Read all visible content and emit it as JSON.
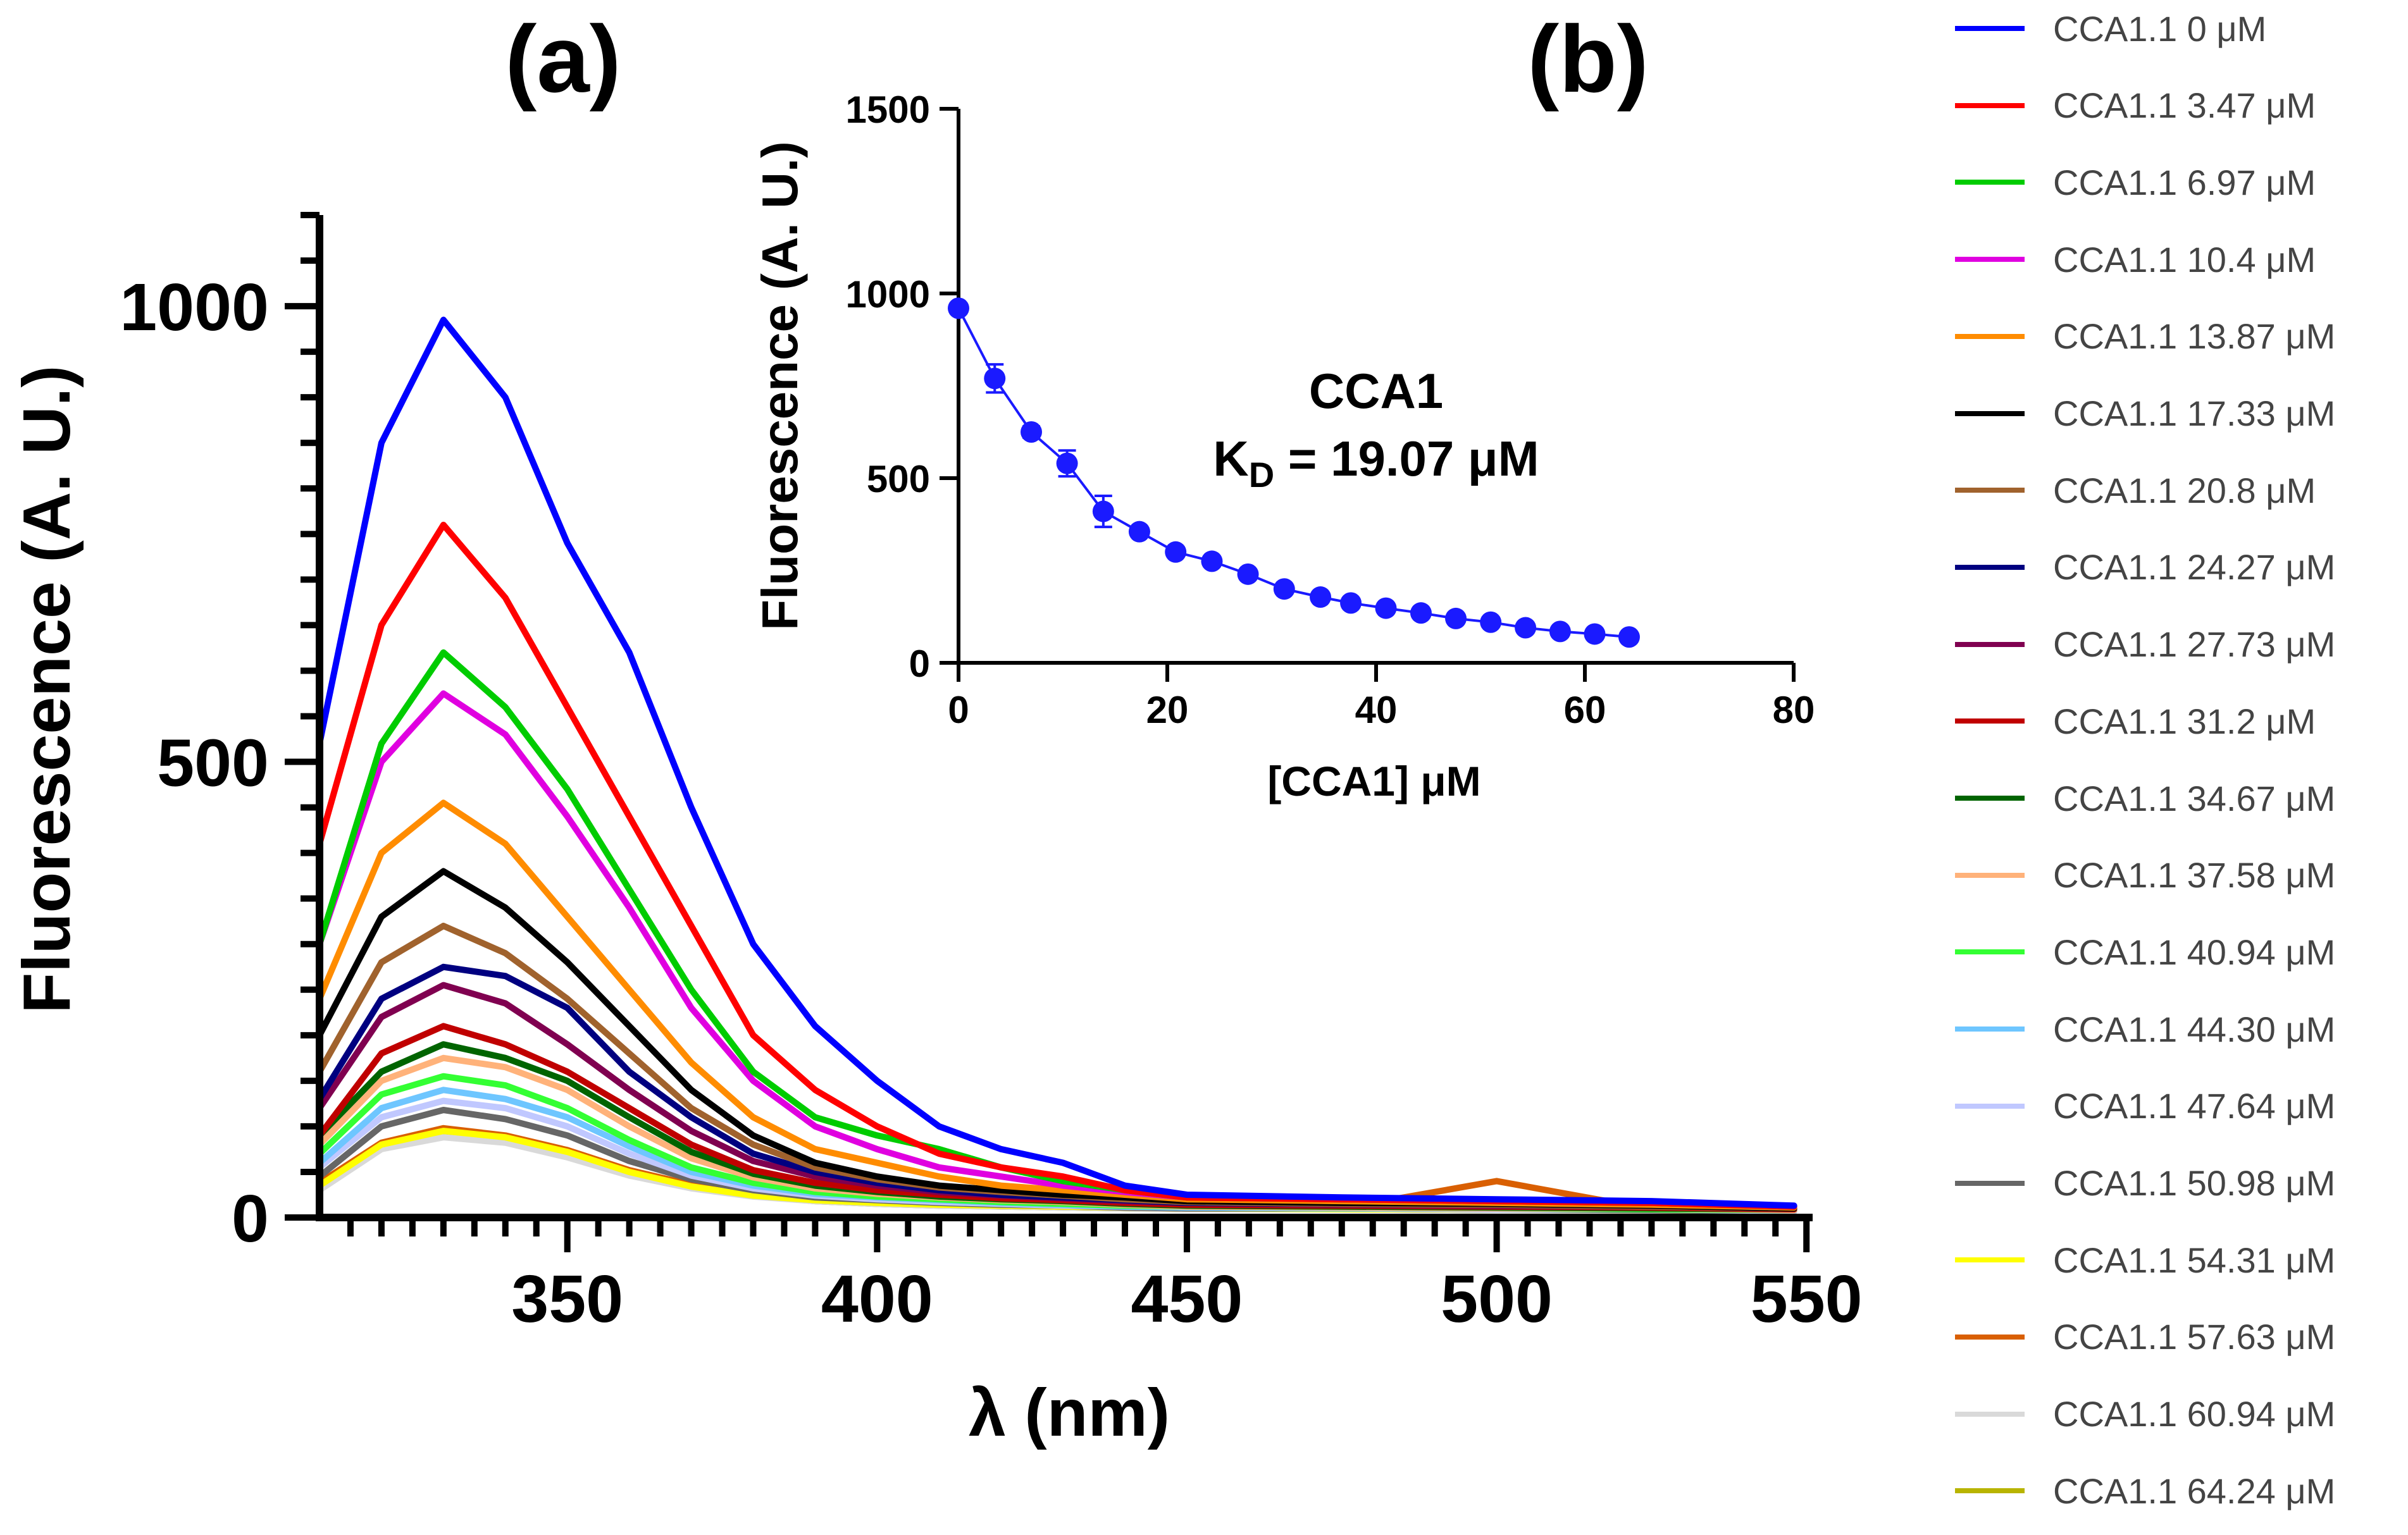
{
  "chart_data": [
    {
      "id": "a",
      "panel_label": "(a)",
      "type": "line",
      "title": "",
      "xlabel": "λ (nm)",
      "ylabel": "Fluorescence (A. U.)",
      "xlim": [
        310,
        551
      ],
      "ylim": [
        0,
        1100
      ],
      "xticks": [
        350,
        400,
        450,
        500,
        550
      ],
      "xtick_labels": [
        "350",
        "400",
        "450",
        "500",
        "550"
      ],
      "yticks": [
        0,
        500,
        1000
      ],
      "ytick_labels": [
        "0",
        "500",
        "1000"
      ],
      "x": [
        310,
        320,
        330,
        340,
        350,
        360,
        370,
        380,
        390,
        400,
        410,
        420,
        430,
        440,
        450,
        475,
        500,
        525,
        548
      ],
      "series": [
        {
          "name": "CCA1.1 0 μM",
          "color": "#0000ff",
          "values": [
            520,
            850,
            985,
            900,
            740,
            620,
            450,
            300,
            210,
            150,
            100,
            75,
            60,
            35,
            25,
            22,
            20,
            18,
            13
          ]
        },
        {
          "name": "CCA1.1 3.47 μM",
          "color": "#ff0000",
          "values": [
            410,
            650,
            760,
            680,
            560,
            440,
            320,
            200,
            140,
            100,
            70,
            55,
            45,
            30,
            22,
            20,
            18,
            16,
            12
          ]
        },
        {
          "name": "CCA1.1 6.97 μM",
          "color": "#00cc00",
          "values": [
            300,
            520,
            620,
            560,
            470,
            360,
            250,
            160,
            110,
            90,
            75,
            55,
            40,
            30,
            22,
            20,
            18,
            16,
            12
          ]
        },
        {
          "name": "CCA1.1 10.4 μM",
          "color": "#e000e0",
          "values": [
            300,
            500,
            575,
            530,
            440,
            340,
            230,
            150,
            100,
            75,
            55,
            45,
            35,
            28,
            22,
            20,
            18,
            16,
            12
          ]
        },
        {
          "name": "CCA1.1 13.87 μM",
          "color": "#ff8c00",
          "values": [
            240,
            400,
            455,
            410,
            330,
            250,
            170,
            110,
            75,
            60,
            45,
            35,
            30,
            25,
            20,
            18,
            16,
            14,
            11
          ]
        },
        {
          "name": "CCA1.1 17.33 μM",
          "color": "#000000",
          "values": [
            200,
            330,
            380,
            340,
            280,
            210,
            140,
            90,
            60,
            45,
            35,
            30,
            25,
            22,
            18,
            16,
            15,
            13,
            10
          ]
        },
        {
          "name": "CCA1.1 20.8 μM",
          "color": "#a0622d",
          "values": [
            160,
            280,
            320,
            290,
            240,
            180,
            120,
            80,
            55,
            42,
            33,
            28,
            24,
            20,
            17,
            15,
            14,
            12,
            10
          ]
        },
        {
          "name": "CCA1.1 24.27 μM",
          "color": "#000080",
          "values": [
            130,
            240,
            275,
            265,
            230,
            160,
            110,
            70,
            50,
            38,
            30,
            25,
            22,
            19,
            16,
            15,
            14,
            12,
            10
          ]
        },
        {
          "name": "CCA1.1 27.73 μM",
          "color": "#800050",
          "values": [
            120,
            220,
            255,
            235,
            190,
            140,
            95,
            62,
            45,
            35,
            28,
            24,
            21,
            18,
            16,
            14,
            13,
            12,
            10
          ]
        },
        {
          "name": "CCA1.1 31.2 μM",
          "color": "#c00000",
          "values": [
            90,
            180,
            210,
            190,
            160,
            120,
            80,
            52,
            38,
            30,
            25,
            21,
            19,
            16,
            14,
            13,
            12,
            11,
            9
          ]
        },
        {
          "name": "CCA1.1 34.67 μM",
          "color": "#006400",
          "values": [
            90,
            160,
            190,
            175,
            150,
            110,
            72,
            48,
            35,
            28,
            23,
            20,
            18,
            15,
            13,
            12,
            11,
            10,
            9
          ]
        },
        {
          "name": "CCA1.1 37.58 μM",
          "color": "#ffb27a",
          "values": [
            80,
            150,
            175,
            165,
            140,
            100,
            65,
            44,
            32,
            26,
            22,
            19,
            17,
            14,
            12,
            11,
            10,
            10,
            8
          ]
        },
        {
          "name": "CCA1.1 40.94 μM",
          "color": "#33ff33",
          "values": [
            70,
            135,
            155,
            145,
            120,
            85,
            55,
            38,
            28,
            23,
            20,
            17,
            15,
            13,
            12,
            11,
            10,
            9,
            8
          ]
        },
        {
          "name": "CCA1.1 44.30 μM",
          "color": "#6ec6ff",
          "values": [
            60,
            120,
            140,
            130,
            110,
            78,
            50,
            35,
            26,
            22,
            19,
            16,
            14,
            12,
            11,
            10,
            10,
            9,
            8
          ]
        },
        {
          "name": "CCA1.1 47.64 μM",
          "color": "#c0c8ff",
          "values": [
            55,
            110,
            128,
            120,
            100,
            70,
            46,
            32,
            24,
            20,
            17,
            15,
            13,
            12,
            11,
            10,
            9,
            9,
            7
          ]
        },
        {
          "name": "CCA1.1 50.98 μM",
          "color": "#666666",
          "values": [
            45,
            100,
            118,
            108,
            90,
            62,
            42,
            30,
            22,
            19,
            16,
            14,
            13,
            11,
            10,
            10,
            9,
            8,
            7
          ]
        },
        {
          "name": "CCA1.1 54.31 μM",
          "color": "#ffff00",
          "values": [
            35,
            80,
            95,
            88,
            72,
            50,
            34,
            24,
            19,
            16,
            14,
            13,
            12,
            11,
            10,
            9,
            9,
            8,
            7
          ]
        },
        {
          "name": "CCA1.1 57.63 μM",
          "color": "#d95f02",
          "values": [
            38,
            82,
            98,
            90,
            74,
            52,
            36,
            25,
            20,
            17,
            15,
            13,
            12,
            11,
            10,
            10,
            40,
            9,
            7
          ]
        },
        {
          "name": "CCA1.1 60.94 μM",
          "color": "#d9d9d9",
          "values": [
            30,
            75,
            88,
            82,
            66,
            46,
            32,
            23,
            18,
            15,
            13,
            12,
            11,
            10,
            9,
            9,
            8,
            8,
            7
          ]
        },
        {
          "name": "CCA1.1 64.24 μM",
          "color": "#b8b400",
          "values": [
            32,
            78,
            92,
            85,
            70,
            48,
            33,
            24,
            18,
            15,
            13,
            12,
            11,
            10,
            9,
            9,
            8,
            8,
            7
          ]
        }
      ]
    },
    {
      "id": "b",
      "panel_label": "(b)",
      "type": "scatter",
      "title": "",
      "xlabel": "[CCA1] μM",
      "ylabel": "Fluorescence (A. U.)",
      "xlim": [
        0,
        80
      ],
      "ylim": [
        0,
        1500
      ],
      "xticks": [
        0,
        20,
        40,
        60,
        80
      ],
      "xtick_labels": [
        "0",
        "20",
        "40",
        "60",
        "80"
      ],
      "yticks": [
        0,
        500,
        1000,
        1500
      ],
      "ytick_labels": [
        "0",
        "500",
        "1000",
        "1500"
      ],
      "annotation_line1": "CCA1",
      "annotation_kd_prefix": "K",
      "annotation_kd_sub": "D",
      "annotation_kd_suffix": " = 19.07 μM",
      "color": "#1a1aff",
      "x": [
        0,
        3.47,
        6.97,
        10.4,
        13.87,
        17.33,
        20.8,
        24.27,
        27.73,
        31.2,
        34.67,
        37.58,
        40.94,
        44.3,
        47.64,
        50.98,
        54.31,
        57.63,
        60.94,
        64.24
      ],
      "y": [
        960,
        770,
        625,
        540,
        410,
        355,
        300,
        275,
        240,
        200,
        178,
        162,
        148,
        135,
        120,
        110,
        95,
        85,
        78,
        70
      ],
      "error": [
        0,
        38,
        15,
        35,
        42,
        12,
        10,
        10,
        10,
        8,
        8,
        8,
        7,
        7,
        6,
        6,
        6,
        5,
        5,
        5
      ]
    }
  ]
}
